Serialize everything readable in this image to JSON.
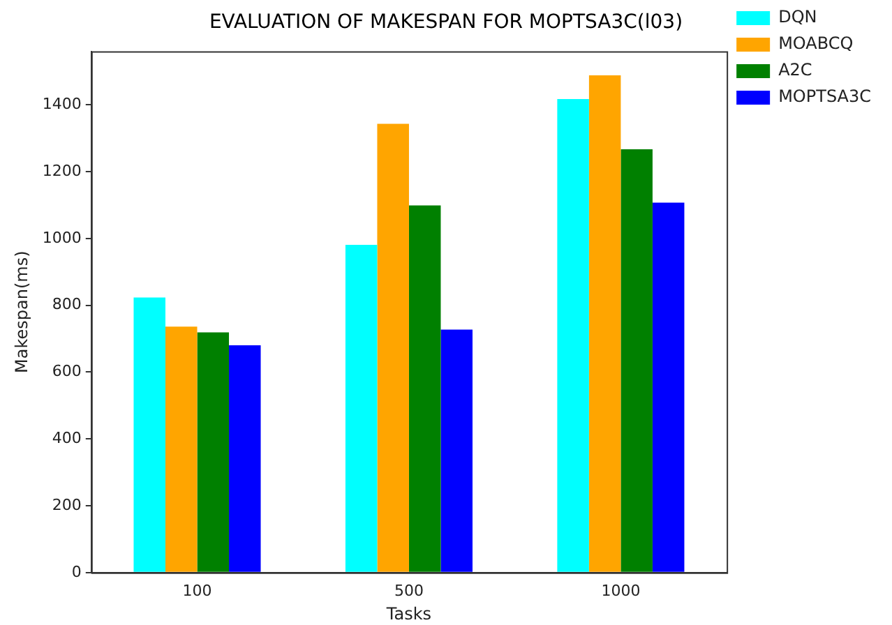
{
  "chart_data": {
    "type": "bar",
    "title": "EVALUATION OF MAKESPAN FOR MOPTSA3C(l03)",
    "xlabel": "Tasks",
    "ylabel": "Makespan(ms)",
    "categories": [
      "100",
      "500",
      "1000"
    ],
    "series": [
      {
        "name": "DQN",
        "color": "#00ffff",
        "values": [
          823,
          981,
          1417
        ]
      },
      {
        "name": "MOABCQ",
        "color": "#ffa500",
        "values": [
          736,
          1343,
          1488
        ]
      },
      {
        "name": "A2C",
        "color": "#008000",
        "values": [
          719,
          1099,
          1267
        ]
      },
      {
        "name": "MOPTSA3C",
        "color": "#0000ff",
        "values": [
          680,
          727,
          1107
        ]
      }
    ],
    "ylim": [
      0,
      1560
    ],
    "yticks": [
      0,
      200,
      400,
      600,
      800,
      1000,
      1200,
      1400
    ],
    "grid": false,
    "legend": "top right"
  }
}
